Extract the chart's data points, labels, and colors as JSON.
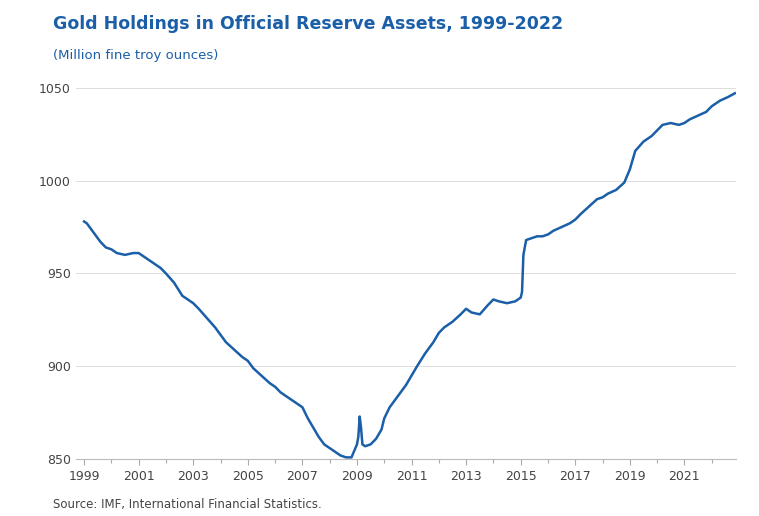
{
  "title": "Gold Holdings in Official Reserve Assets, 1999-2022",
  "subtitle": "(Million fine troy ounces)",
  "source": "Source: IMF, International Financial Statistics.",
  "title_color": "#1a5fa8",
  "subtitle_color": "#1a5fa8",
  "line_color": "#1a5fa8",
  "background_color": "#ffffff",
  "plot_bg_color": "#ffffff",
  "ylim": [
    850,
    1050
  ],
  "yticks": [
    850,
    900,
    950,
    1000,
    1050
  ],
  "xlim_min": 1998.7,
  "xlim_max": 2022.9,
  "xticks": [
    1999,
    2001,
    2003,
    2005,
    2007,
    2009,
    2011,
    2013,
    2015,
    2017,
    2019,
    2021
  ],
  "years": [
    1999.0,
    1999.1,
    1999.2,
    1999.4,
    1999.6,
    1999.8,
    2000.0,
    2000.2,
    2000.5,
    2000.8,
    2001.0,
    2001.2,
    2001.5,
    2001.8,
    2002.0,
    2002.3,
    2002.6,
    2002.9,
    2003.0,
    2003.2,
    2003.5,
    2003.8,
    2004.0,
    2004.2,
    2004.5,
    2004.8,
    2005.0,
    2005.2,
    2005.5,
    2005.8,
    2006.0,
    2006.2,
    2006.5,
    2006.8,
    2007.0,
    2007.2,
    2007.4,
    2007.6,
    2007.8,
    2008.0,
    2008.2,
    2008.4,
    2008.6,
    2008.8,
    2009.0,
    2009.05,
    2009.1,
    2009.15,
    2009.2,
    2009.3,
    2009.5,
    2009.7,
    2009.9,
    2010.0,
    2010.2,
    2010.4,
    2010.6,
    2010.8,
    2011.0,
    2011.2,
    2011.5,
    2011.8,
    2012.0,
    2012.2,
    2012.5,
    2012.8,
    2013.0,
    2013.2,
    2013.5,
    2013.8,
    2014.0,
    2014.2,
    2014.5,
    2014.8,
    2015.0,
    2015.05,
    2015.1,
    2015.2,
    2015.4,
    2015.6,
    2015.8,
    2016.0,
    2016.2,
    2016.5,
    2016.8,
    2017.0,
    2017.2,
    2017.5,
    2017.8,
    2018.0,
    2018.2,
    2018.5,
    2018.8,
    2019.0,
    2019.2,
    2019.5,
    2019.8,
    2020.0,
    2020.2,
    2020.5,
    2020.8,
    2021.0,
    2021.2,
    2021.5,
    2021.8,
    2022.0,
    2022.3,
    2022.6,
    2022.85
  ],
  "values": [
    978,
    977,
    975,
    971,
    967,
    964,
    963,
    961,
    960,
    961,
    961,
    959,
    956,
    953,
    950,
    945,
    938,
    935,
    934,
    931,
    926,
    921,
    917,
    913,
    909,
    905,
    903,
    899,
    895,
    891,
    889,
    886,
    883,
    880,
    878,
    872,
    867,
    862,
    858,
    856,
    854,
    852,
    851,
    851,
    858,
    862,
    873,
    867,
    858,
    857,
    858,
    861,
    866,
    872,
    878,
    882,
    886,
    890,
    895,
    900,
    907,
    913,
    918,
    921,
    924,
    928,
    931,
    929,
    928,
    933,
    936,
    935,
    934,
    935,
    937,
    940,
    960,
    968,
    969,
    970,
    970,
    971,
    973,
    975,
    977,
    979,
    982,
    986,
    990,
    991,
    993,
    995,
    999,
    1006,
    1016,
    1021,
    1024,
    1027,
    1030,
    1031,
    1030,
    1031,
    1033,
    1035,
    1037,
    1040,
    1043,
    1045,
    1047
  ]
}
